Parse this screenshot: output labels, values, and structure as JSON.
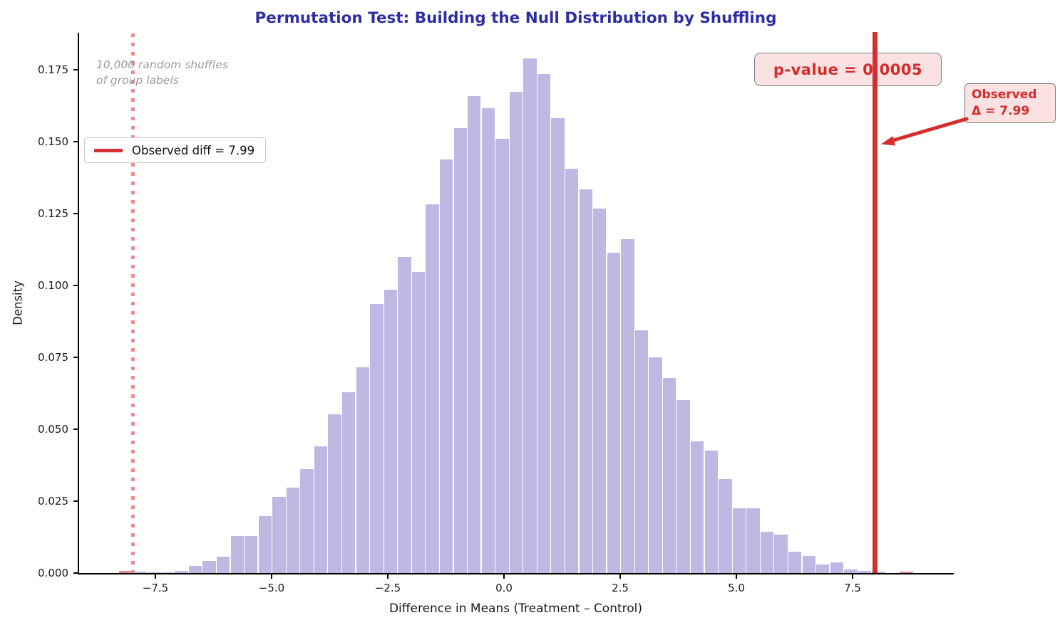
{
  "title": "Permutation Test: Building the Null Distribution by Shuffling",
  "annotation": {
    "line1": "10,000 random shuffles",
    "line2": "of group labels"
  },
  "legend": {
    "label": "Observed diff = 7.99"
  },
  "pvalue_box": {
    "label": "p-value = 0.0005"
  },
  "observed_box": {
    "line1": "Observed",
    "line2": "Δ = 7.99"
  },
  "axes": {
    "xlabel": "Difference in Means (Treatment – Control)",
    "ylabel": "Density",
    "x_ticks": [
      {
        "v": -7.5,
        "label": "−7.5"
      },
      {
        "v": -5.0,
        "label": "−5.0"
      },
      {
        "v": -2.5,
        "label": "−2.5"
      },
      {
        "v": 0.0,
        "label": "0.0"
      },
      {
        "v": 2.5,
        "label": "2.5"
      },
      {
        "v": 5.0,
        "label": "5.0"
      },
      {
        "v": 7.5,
        "label": "7.5"
      }
    ],
    "y_ticks": [
      {
        "v": 0.0,
        "label": "0.000"
      },
      {
        "v": 0.025,
        "label": "0.025"
      },
      {
        "v": 0.05,
        "label": "0.050"
      },
      {
        "v": 0.075,
        "label": "0.075"
      },
      {
        "v": 0.1,
        "label": "0.100"
      },
      {
        "v": 0.125,
        "label": "0.125"
      },
      {
        "v": 0.15,
        "label": "0.150"
      },
      {
        "v": 0.175,
        "label": "0.175"
      }
    ]
  },
  "colors": {
    "title": "#2e2ea2",
    "bar_fill": "#bdb9e3",
    "bar_edge": "#ffffff",
    "tail_bar_fill": "#e28d8d",
    "observed_line": "#d32f2f",
    "mirror_line_dotted": "#ec8c8c",
    "annotation_gray": "#9b9b9b",
    "box_background": "#fbe2e2",
    "box_border": "#7d7d7d"
  },
  "chart_data": {
    "type": "bar",
    "subtype": "histogram",
    "title": "Permutation Test: Building the Null Distribution by Shuffling",
    "xlabel": "Difference in Means (Treatment – Control)",
    "ylabel": "Density",
    "xlim": [
      -9.15,
      9.66
    ],
    "ylim": [
      0,
      0.1876
    ],
    "grid": false,
    "legend_position": "upper left",
    "n_shuffles": 10000,
    "observed_diff": 7.99,
    "observed_mirror": -7.99,
    "p_value": 0.0005,
    "bin_width": 0.3,
    "bins": [
      {
        "left": -8.29,
        "density": 0.0007,
        "red": true
      },
      {
        "left": -7.99,
        "density": 0.0006
      },
      {
        "left": -7.69,
        "density": 0.0002
      },
      {
        "left": -7.39,
        "density": 0.0003
      },
      {
        "left": -7.09,
        "density": 0.0007
      },
      {
        "left": -6.79,
        "density": 0.0025
      },
      {
        "left": -6.49,
        "density": 0.0042
      },
      {
        "left": -6.19,
        "density": 0.0057
      },
      {
        "left": -5.89,
        "density": 0.0129
      },
      {
        "left": -5.59,
        "density": 0.0129
      },
      {
        "left": -5.29,
        "density": 0.0199
      },
      {
        "left": -4.99,
        "density": 0.0266
      },
      {
        "left": -4.69,
        "density": 0.0298
      },
      {
        "left": -4.39,
        "density": 0.0362
      },
      {
        "left": -4.09,
        "density": 0.044
      },
      {
        "left": -3.79,
        "density": 0.0551
      },
      {
        "left": -3.49,
        "density": 0.0628
      },
      {
        "left": -3.19,
        "density": 0.0715
      },
      {
        "left": -2.89,
        "density": 0.0936
      },
      {
        "left": -2.59,
        "density": 0.0986
      },
      {
        "left": -2.29,
        "density": 0.11
      },
      {
        "left": -1.99,
        "density": 0.1046
      },
      {
        "left": -1.69,
        "density": 0.1283
      },
      {
        "left": -1.39,
        "density": 0.1437
      },
      {
        "left": -1.09,
        "density": 0.1547
      },
      {
        "left": -0.79,
        "density": 0.1658
      },
      {
        "left": -0.49,
        "density": 0.1616
      },
      {
        "left": -0.19,
        "density": 0.1509
      },
      {
        "left": 0.11,
        "density": 0.1673
      },
      {
        "left": 0.41,
        "density": 0.179
      },
      {
        "left": 0.71,
        "density": 0.1735
      },
      {
        "left": 1.01,
        "density": 0.1581
      },
      {
        "left": 1.31,
        "density": 0.1405
      },
      {
        "left": 1.61,
        "density": 0.1335
      },
      {
        "left": 1.91,
        "density": 0.1268
      },
      {
        "left": 2.21,
        "density": 0.1115
      },
      {
        "left": 2.51,
        "density": 0.116
      },
      {
        "left": 2.81,
        "density": 0.0843
      },
      {
        "left": 3.11,
        "density": 0.075
      },
      {
        "left": 3.41,
        "density": 0.0678
      },
      {
        "left": 3.71,
        "density": 0.0601
      },
      {
        "left": 4.01,
        "density": 0.0459
      },
      {
        "left": 4.31,
        "density": 0.0427
      },
      {
        "left": 4.61,
        "density": 0.0328
      },
      {
        "left": 4.91,
        "density": 0.0226
      },
      {
        "left": 5.21,
        "density": 0.0226
      },
      {
        "left": 5.51,
        "density": 0.0144
      },
      {
        "left": 5.81,
        "density": 0.0134
      },
      {
        "left": 6.11,
        "density": 0.0074
      },
      {
        "left": 6.41,
        "density": 0.006
      },
      {
        "left": 6.71,
        "density": 0.003
      },
      {
        "left": 7.01,
        "density": 0.0037
      },
      {
        "left": 7.31,
        "density": 0.0012
      },
      {
        "left": 7.61,
        "density": 0.0007
      },
      {
        "left": 7.91,
        "density": 0.0005
      },
      {
        "left": 8.21,
        "density": 0.0001
      },
      {
        "left": 8.51,
        "density": 0.0004,
        "red": true
      }
    ]
  }
}
